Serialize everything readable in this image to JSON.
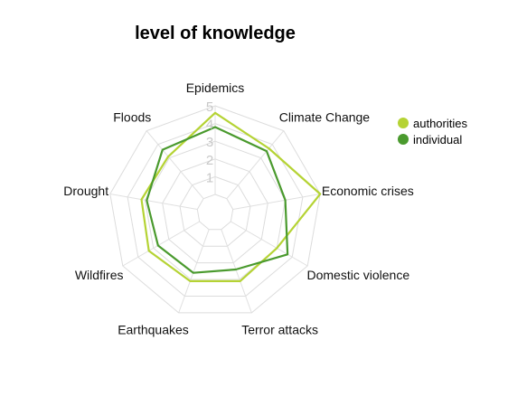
{
  "chart_data": {
    "type": "radar",
    "title": "level of knowledge",
    "axes": [
      "Epidemics",
      "Climate Change",
      "Economic crises",
      "Domestic violence",
      "Terror attacks",
      "Earthquakes",
      "Wildfires",
      "Drought",
      "Floods"
    ],
    "scale": {
      "min": 0,
      "max": 5,
      "ticks": [
        "1",
        "2",
        "3",
        "4",
        "5"
      ]
    },
    "grid": true,
    "legend_position": "top-right",
    "series": [
      {
        "name": "authorities",
        "color": "#b5d334",
        "values": [
          4.6,
          3.7,
          5.0,
          3.0,
          3.1,
          3.1,
          3.3,
          3.2,
          3.1
        ]
      },
      {
        "name": "individual",
        "color": "#4a9a2e",
        "values": [
          3.8,
          3.5,
          3.0,
          3.7,
          2.4,
          2.6,
          2.7,
          2.9,
          3.6
        ]
      }
    ]
  }
}
